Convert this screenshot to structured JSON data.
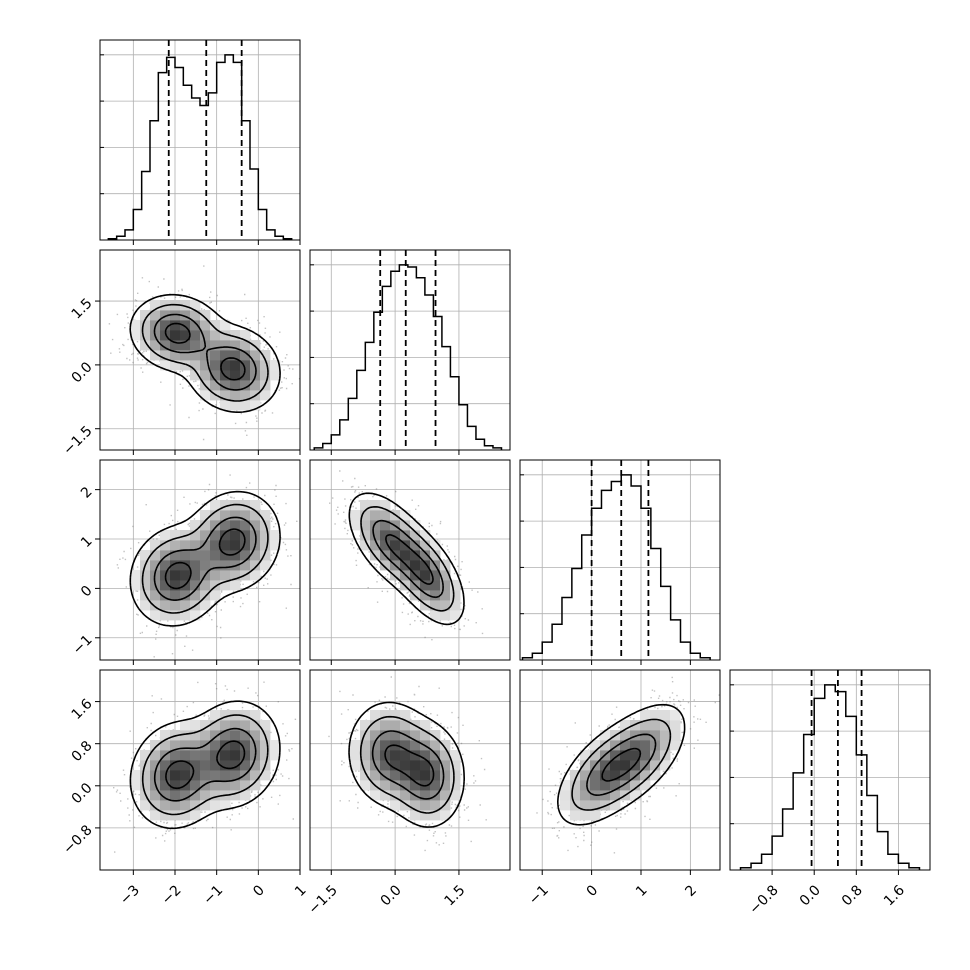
{
  "chart_data": {
    "type": "corner",
    "title": "",
    "grid": true,
    "n_params": 4,
    "axes": [
      {
        "range": [
          -3.8,
          1.0
        ],
        "ticks": [
          -3,
          -2,
          -1,
          0,
          1
        ],
        "tick_labels": [
          "−3",
          "−2",
          "−1",
          "0",
          "1"
        ]
      },
      {
        "range": [
          -2.0,
          2.7
        ],
        "ticks": [
          -1.5,
          0.0,
          1.5
        ],
        "tick_labels": [
          "−1.5",
          "0.0",
          "1.5"
        ]
      },
      {
        "range": [
          -1.45,
          2.6
        ],
        "ticks": [
          -1,
          0,
          1,
          2
        ],
        "tick_labels": [
          "−1",
          "0",
          "1",
          "2"
        ]
      },
      {
        "range": [
          -1.6,
          2.2
        ],
        "ticks": [
          -0.8,
          0.0,
          0.8,
          1.6
        ],
        "tick_labels": [
          "−0.8",
          "0.0",
          "0.8",
          "1.6"
        ]
      }
    ],
    "quantiles": [
      [
        -2.15,
        -1.25,
        -0.4
      ],
      [
        -0.35,
        0.25,
        0.95
      ],
      [
        0.0,
        0.6,
        1.15
      ],
      [
        -0.05,
        0.45,
        0.9
      ]
    ],
    "histograms": [
      {
        "bin_centers": [
          -3.5,
          -3.3,
          -3.1,
          -2.9,
          -2.7,
          -2.5,
          -2.3,
          -2.1,
          -1.9,
          -1.7,
          -1.5,
          -1.3,
          -1.1,
          -0.9,
          -0.7,
          -0.5,
          -0.3,
          -0.1,
          0.1,
          0.3,
          0.5,
          0.7
        ],
        "counts": [
          5,
          15,
          40,
          120,
          270,
          470,
          660,
          720,
          680,
          610,
          560,
          530,
          580,
          700,
          730,
          700,
          470,
          280,
          120,
          40,
          15,
          5
        ]
      },
      {
        "bin_centers": [
          -1.8,
          -1.6,
          -1.4,
          -1.2,
          -1.0,
          -0.8,
          -0.6,
          -0.4,
          -0.2,
          0.0,
          0.2,
          0.4,
          0.6,
          0.8,
          1.0,
          1.2,
          1.4,
          1.6,
          1.8,
          2.0,
          2.2,
          2.4
        ],
        "counts": [
          10,
          30,
          70,
          140,
          240,
          370,
          500,
          640,
          760,
          830,
          860,
          850,
          800,
          720,
          620,
          480,
          340,
          210,
          110,
          50,
          20,
          10
        ]
      },
      {
        "bin_centers": [
          -1.3,
          -1.1,
          -0.9,
          -0.7,
          -0.5,
          -0.3,
          -0.1,
          0.1,
          0.3,
          0.5,
          0.7,
          0.9,
          1.1,
          1.3,
          1.5,
          1.7,
          1.9,
          2.1,
          2.3
        ],
        "counts": [
          10,
          30,
          80,
          160,
          280,
          410,
          560,
          680,
          760,
          800,
          830,
          780,
          680,
          500,
          330,
          180,
          80,
          30,
          10
        ]
      },
      {
        "bin_centers": [
          -1.3,
          -1.1,
          -0.9,
          -0.7,
          -0.5,
          -0.3,
          -0.1,
          0.1,
          0.3,
          0.5,
          0.7,
          0.9,
          1.1,
          1.3,
          1.5,
          1.7,
          1.9
        ],
        "counts": [
          10,
          30,
          70,
          150,
          270,
          430,
          600,
          760,
          820,
          790,
          680,
          510,
          330,
          170,
          70,
          30,
          10
        ]
      }
    ],
    "clusters": [
      {
        "weight": 0.5,
        "means": [
          -1.95,
          0.75,
          0.25,
          0.2
        ],
        "sigmas": [
          0.5,
          0.4,
          0.45,
          0.45
        ]
      },
      {
        "weight": 0.5,
        "means": [
          -0.6,
          -0.1,
          0.95,
          0.6
        ],
        "sigmas": [
          0.5,
          0.45,
          0.45,
          0.45
        ]
      }
    ],
    "pair_correlations": {
      "0,1": -0.1,
      "0,2": 0.1,
      "0,3": 0.1,
      "1,2": -0.55,
      "1,3": -0.05,
      "2,3": 0.55
    },
    "contour_levels": [
      "39.3%",
      "86.5%",
      "98.9%"
    ]
  }
}
